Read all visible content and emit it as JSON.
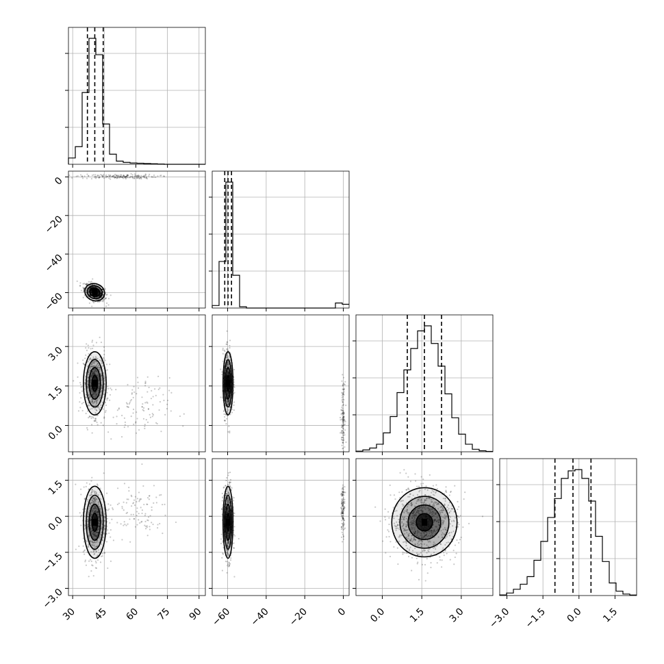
{
  "chart_data": {
    "type": "corner",
    "parameters": [
      {
        "ticks": [
          30,
          45,
          60,
          75,
          90
        ],
        "tick_labels": [
          "30",
          "45",
          "60",
          "75",
          "90"
        ],
        "range": [
          28,
          93
        ],
        "quantiles": [
          37.0,
          40.5,
          44.5
        ]
      },
      {
        "ticks": [
          -60,
          -40,
          -20,
          0
        ],
        "tick_labels": [
          "−60",
          "−40",
          "−20",
          "0"
        ],
        "range": [
          -68,
          3
        ],
        "quantiles": [
          -61.5,
          -59.8,
          -58.0
        ]
      },
      {
        "ticks": [
          0.0,
          1.5,
          3.0
        ],
        "tick_labels": [
          "0.0",
          "1.5",
          "3.0"
        ],
        "range": [
          -1.0,
          4.2
        ],
        "quantiles": [
          0.95,
          1.6,
          2.25
        ]
      },
      {
        "ticks": [
          -3.0,
          -1.5,
          0.0,
          1.5
        ],
        "tick_labels": [
          "−3.0",
          "−1.5",
          "0.0",
          "1.5"
        ],
        "range": [
          -3.3,
          2.4
        ],
        "quantiles": [
          -1.0,
          -0.25,
          0.5
        ]
      }
    ],
    "histograms": [
      {
        "param": 0,
        "edges": [
          28,
          31.25,
          34.5,
          37.75,
          41,
          44.25,
          47.5,
          50.75,
          54,
          57.25,
          60.5,
          63.75,
          67,
          70.25,
          73.5,
          76.75,
          80,
          83.25,
          86.5,
          89.75,
          93
        ],
        "counts": [
          0.05,
          0.14,
          0.57,
          1.0,
          0.87,
          0.32,
          0.08,
          0.025,
          0.015,
          0.01,
          0.008,
          0.006,
          0.004,
          0.002,
          0,
          0,
          0,
          0,
          0,
          0
        ]
      },
      {
        "param": 1,
        "edges": [
          -68,
          -64.45,
          -60.9,
          -57.35,
          -53.8,
          -50.25,
          -46.7,
          -43.15,
          -39.6,
          -36.05,
          -32.5,
          -28.95,
          -25.4,
          -21.85,
          -18.3,
          -14.75,
          -11.2,
          -7.65,
          -4.1,
          -0.55,
          3.0
        ],
        "counts": [
          0.02,
          0.37,
          1.0,
          0.26,
          0.01,
          0,
          0,
          0,
          0,
          0,
          0,
          0,
          0,
          0,
          0,
          0,
          0,
          0,
          0.04,
          0.03
        ]
      },
      {
        "param": 2,
        "edges": [
          -1.0,
          -0.74,
          -0.48,
          -0.22,
          0.04,
          0.3,
          0.56,
          0.82,
          1.08,
          1.34,
          1.6,
          1.86,
          2.12,
          2.38,
          2.64,
          2.9,
          3.16,
          3.42,
          3.68,
          3.94,
          4.2
        ],
        "counts": [
          0.005,
          0.015,
          0.03,
          0.06,
          0.15,
          0.28,
          0.47,
          0.65,
          0.82,
          0.96,
          1.0,
          0.86,
          0.68,
          0.46,
          0.27,
          0.14,
          0.06,
          0.02,
          0.008,
          0.003
        ]
      },
      {
        "param": 3,
        "edges": [
          -3.3,
          -3.015,
          -2.73,
          -2.445,
          -2.16,
          -1.875,
          -1.59,
          -1.305,
          -1.02,
          -0.735,
          -0.45,
          -0.165,
          0.12,
          0.405,
          0.69,
          0.975,
          1.26,
          1.545,
          1.83,
          2.115,
          2.4
        ],
        "counts": [
          0.005,
          0.02,
          0.05,
          0.09,
          0.15,
          0.28,
          0.43,
          0.62,
          0.77,
          0.93,
          0.99,
          1.0,
          0.93,
          0.75,
          0.47,
          0.27,
          0.1,
          0.035,
          0.012,
          0.004
        ]
      }
    ],
    "panels2d": [
      {
        "x": 0,
        "y": 1,
        "clusters": [
          {
            "mx": 40.5,
            "my": -59.8,
            "sx": 2.4,
            "sy": 2.2,
            "rho": -0.45,
            "n": 700
          },
          {
            "mx": 52,
            "my": 0.2,
            "sx": 9,
            "sy": 0.6,
            "rho": 0,
            "n": 170
          }
        ]
      },
      {
        "x": 0,
        "y": 2,
        "clusters": [
          {
            "mx": 40.5,
            "my": 1.6,
            "sx": 2.7,
            "sy": 0.6,
            "rho": 0,
            "n": 620
          },
          {
            "mx": 60,
            "my": 0.6,
            "sx": 8,
            "sy": 0.6,
            "rho": 0,
            "n": 110
          }
        ]
      },
      {
        "x": 0,
        "y": 3,
        "clusters": [
          {
            "mx": 40.5,
            "my": -0.25,
            "sx": 2.7,
            "sy": 0.75,
            "rho": 0,
            "n": 620
          },
          {
            "mx": 60,
            "my": 0.2,
            "sx": 8,
            "sy": 0.55,
            "rho": 0,
            "n": 110
          }
        ]
      },
      {
        "x": 1,
        "y": 2,
        "clusters": [
          {
            "mx": -59.8,
            "my": 1.6,
            "sx": 1.3,
            "sy": 0.6,
            "rho": 0,
            "n": 620
          },
          {
            "mx": -0.2,
            "my": 0.4,
            "sx": 0.5,
            "sy": 0.6,
            "rho": 0,
            "n": 130
          }
        ]
      },
      {
        "x": 1,
        "y": 3,
        "clusters": [
          {
            "mx": -59.8,
            "my": -0.25,
            "sx": 1.3,
            "sy": 0.75,
            "rho": 0,
            "n": 620
          },
          {
            "mx": -0.2,
            "my": 0.3,
            "sx": 0.5,
            "sy": 0.5,
            "rho": 0,
            "n": 130
          }
        ]
      },
      {
        "x": 2,
        "y": 3,
        "clusters": [
          {
            "mx": 1.6,
            "my": -0.25,
            "sx": 0.62,
            "sy": 0.72,
            "rho": 0,
            "n": 900
          }
        ]
      }
    ],
    "grid": true,
    "quantile_lines": "dashed",
    "contour_levels_sigma": [
      0.5,
      1.0,
      1.5,
      2.0
    ]
  }
}
